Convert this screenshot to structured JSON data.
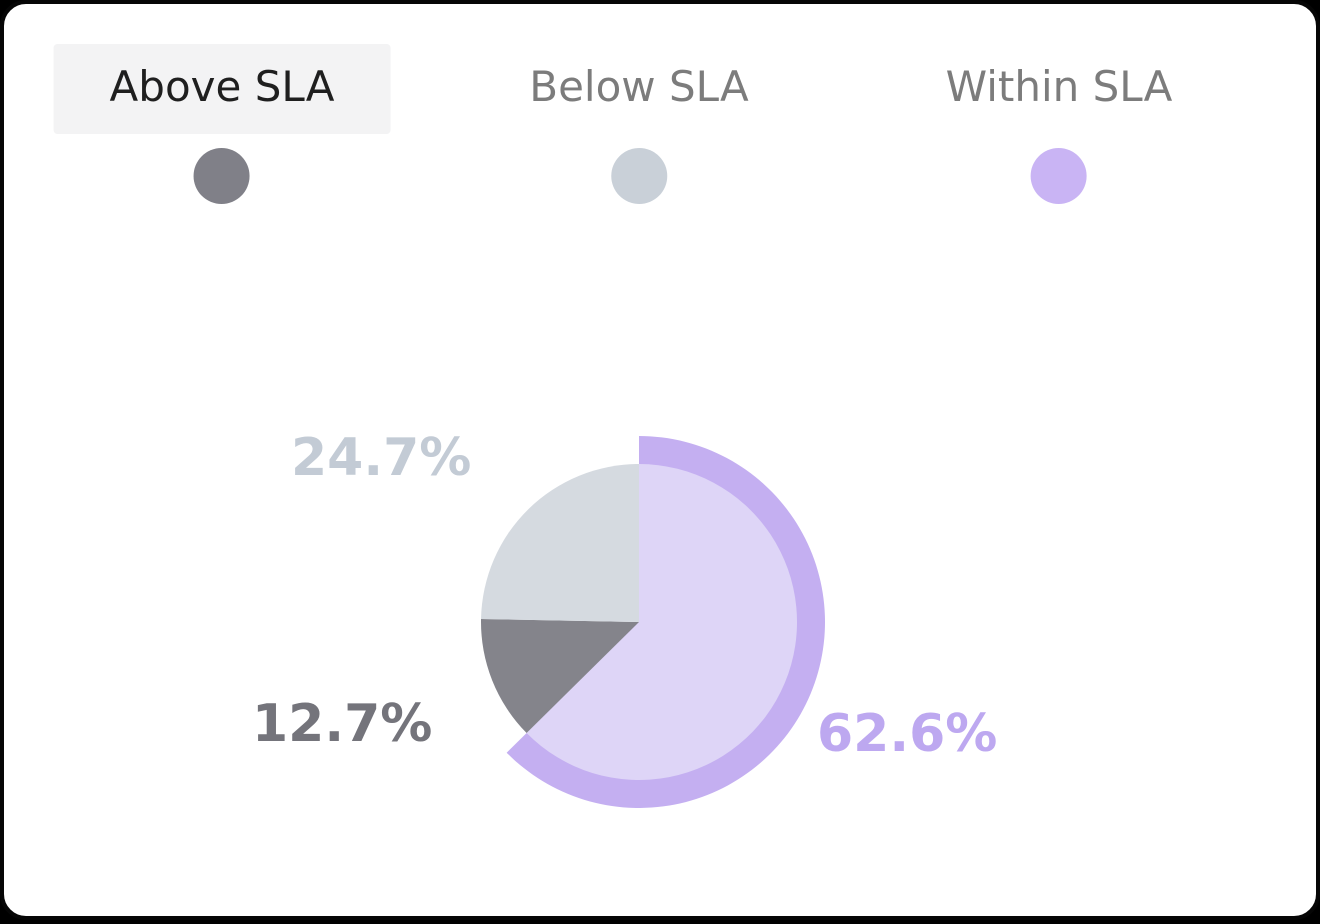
{
  "legend": {
    "items": [
      {
        "label": "Above SLA",
        "color": "#808088",
        "selected": true
      },
      {
        "label": "Below SLA",
        "color": "#c9d0d8",
        "selected": false
      },
      {
        "label": "Within SLA",
        "color": "#c9b4f4",
        "selected": false
      }
    ]
  },
  "chart_data": {
    "type": "pie",
    "title": "",
    "start_angle_deg": 0,
    "direction": "clockwise",
    "legend_position": "top",
    "categories": [
      "Within SLA",
      "Above SLA",
      "Below SLA"
    ],
    "values": [
      62.6,
      12.7,
      24.7
    ],
    "segments": [
      {
        "name": "Within SLA",
        "value": 62.6,
        "label": "62.6%",
        "color": "#ded5f7",
        "ring": true,
        "ring_color": "#c4aff1",
        "label_color": "#bda8f0"
      },
      {
        "name": "Above SLA",
        "value": 12.7,
        "label": "12.7%",
        "color": "#84848b",
        "ring": false,
        "label_color": "#74747b"
      },
      {
        "name": "Below SLA",
        "value": 24.7,
        "label": "24.7%",
        "color": "#d5dae0",
        "ring": false,
        "label_color": "#c3cbd5"
      }
    ]
  }
}
